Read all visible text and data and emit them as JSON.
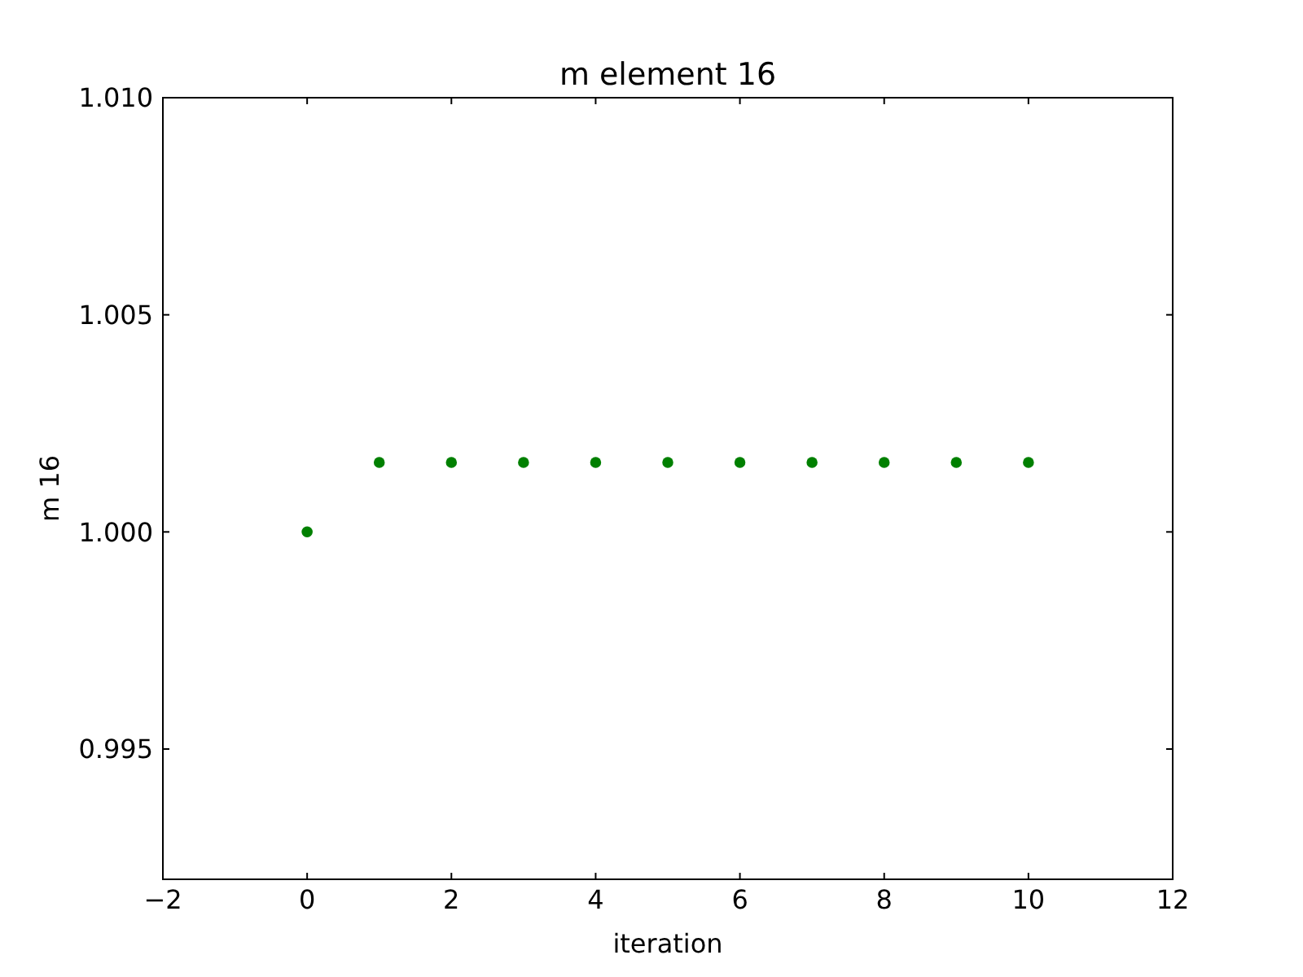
{
  "chart_data": {
    "type": "scatter",
    "title": "m element 16",
    "xlabel": "iteration",
    "ylabel": "m 16",
    "x": [
      0,
      1,
      2,
      3,
      4,
      5,
      6,
      7,
      8,
      9,
      10
    ],
    "series": [
      {
        "color": "#008000",
        "values": [
          1.0,
          1.0016,
          1.0016,
          1.0016,
          1.0016,
          1.0016,
          1.0016,
          1.0016,
          1.0016,
          1.0016,
          1.0016
        ]
      }
    ],
    "xlim": [
      -2,
      12
    ],
    "xticks": [
      {
        "value": -2,
        "label": "−2"
      },
      0,
      2,
      4,
      6,
      8,
      10,
      12
    ],
    "ylim": [
      0.992,
      1.01
    ],
    "yticks": [
      {
        "value": 0.995,
        "label": "0.995"
      },
      {
        "value": 1.0,
        "label": "1.000"
      },
      {
        "value": 1.005,
        "label": "1.005"
      },
      {
        "value": 1.01,
        "label": "1.010"
      }
    ],
    "marker": "circle",
    "grid": false
  }
}
